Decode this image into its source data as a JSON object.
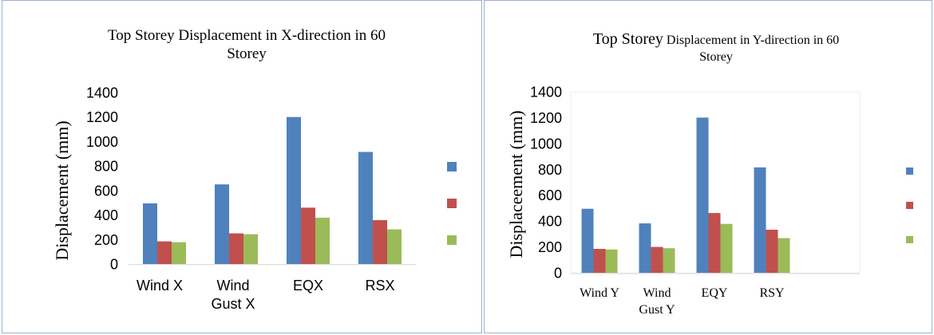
{
  "chart_data": [
    {
      "type": "bar",
      "title": "Top Storey Displacement in X-direction in 60 Storey",
      "title_lines": [
        "Top Storey Displacement in X-direction in 60",
        "Storey"
      ],
      "ylabel": "Displacement (mm)",
      "xlabel": "",
      "categories": [
        "Wind X",
        "Wind Gust X",
        "EQX",
        "RSX"
      ],
      "category_lines": [
        [
          "Wind X"
        ],
        [
          "Wind",
          "Gust X"
        ],
        [
          "EQX"
        ],
        [
          "RSX"
        ]
      ],
      "yticks": [
        "0",
        "200",
        "400",
        "600",
        "800",
        "1000",
        "1200",
        "1400"
      ],
      "ylim": [
        0,
        1400
      ],
      "grid": false,
      "legend": "right",
      "series": [
        {
          "values": [
            495,
            650,
            1200,
            915
          ],
          "color": "#4f81bd"
        },
        {
          "values": [
            185,
            250,
            460,
            358
          ],
          "color": "#c0504d"
        },
        {
          "values": [
            178,
            243,
            378,
            283
          ],
          "color": "#9bbb59"
        }
      ]
    },
    {
      "type": "bar",
      "title": "Top Storey Displacement in Y-direction in 60 Storey",
      "title_line1_a": "Top Storey",
      "title_line1_b": " Displacement in Y-direction in 60",
      "title_line2": "Storey",
      "ylabel": "Displaceement (mm)",
      "xlabel": "",
      "categories": [
        "Wind Y",
        "Wind Gust Y",
        "EQY",
        "RSY"
      ],
      "category_lines": [
        [
          "Wind Y"
        ],
        [
          "Wind",
          "Gust Y"
        ],
        [
          "EQY"
        ],
        [
          "RSY"
        ]
      ],
      "yticks": [
        "0",
        "200",
        "400",
        "600",
        "800",
        "1000",
        "1200",
        "1400"
      ],
      "ylim": [
        0,
        1400
      ],
      "grid": false,
      "legend": "right",
      "series": [
        {
          "values": [
            495,
            382,
            1200,
            815
          ],
          "color": "#4f81bd"
        },
        {
          "values": [
            185,
            200,
            462,
            333
          ],
          "color": "#c0504d"
        },
        {
          "values": [
            180,
            190,
            378,
            268
          ],
          "color": "#9bbb59"
        }
      ]
    }
  ]
}
